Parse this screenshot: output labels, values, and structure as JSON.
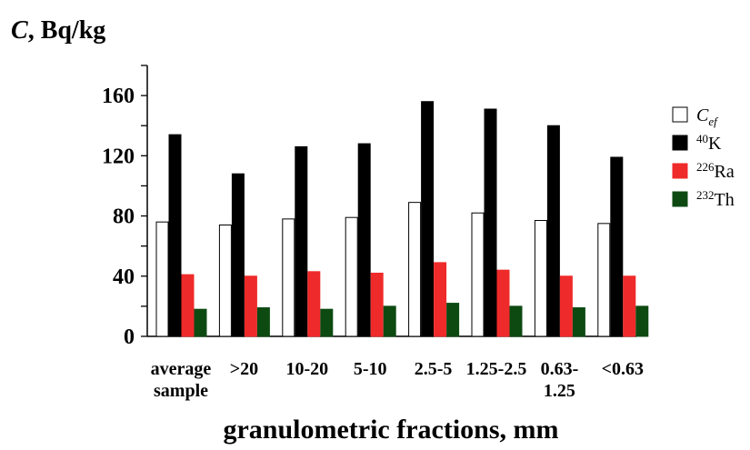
{
  "chart_data": {
    "type": "bar",
    "ylabel": {
      "symbol": "C",
      "units": ", Bq/kg"
    },
    "xlabel": "granulometric fractions, mm",
    "ylim": [
      0,
      180
    ],
    "yticks": [
      0,
      40,
      80,
      120,
      160
    ],
    "categories": [
      [
        "average",
        "sample"
      ],
      [
        ">20"
      ],
      [
        "10-20"
      ],
      [
        "5-10"
      ],
      [
        "2.5-5"
      ],
      [
        "1.25-2.5"
      ],
      [
        "0.63-",
        "1.25"
      ],
      [
        "<0.63"
      ]
    ],
    "series": [
      {
        "name": "C",
        "name_sub": "ef",
        "color": "#ffffff",
        "stroke": "#000000",
        "values": [
          76,
          74,
          78,
          79,
          89,
          82,
          77,
          75
        ]
      },
      {
        "name": "K",
        "name_sup": "40",
        "color": "#000000",
        "stroke": "#000000",
        "values": [
          134,
          108,
          126,
          128,
          156,
          151,
          140,
          119
        ]
      },
      {
        "name": "Ra",
        "name_sup": "226",
        "color": "#ef2a2a",
        "stroke": "#ef2a2a",
        "values": [
          41,
          40,
          43,
          42,
          49,
          44,
          40,
          40
        ]
      },
      {
        "name": "Th",
        "name_sup": "232",
        "color": "#0d4a12",
        "stroke": "#0d4a12",
        "values": [
          18,
          19,
          18,
          20,
          22,
          20,
          19,
          20
        ]
      }
    ],
    "legend_position": "right",
    "grid": false
  }
}
